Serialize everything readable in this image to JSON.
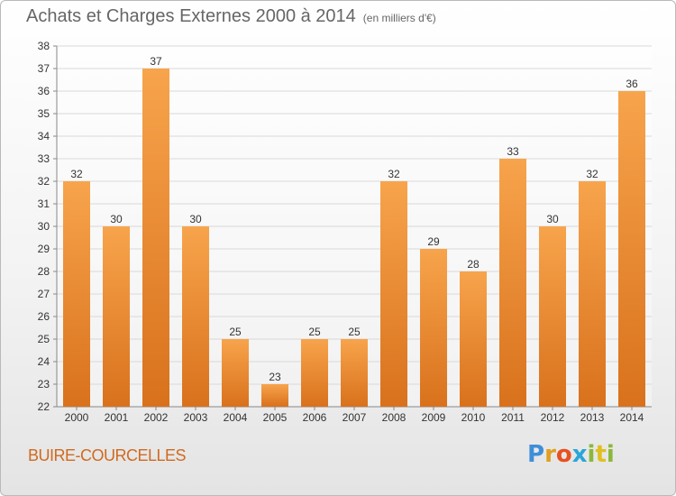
{
  "header": {
    "title": "Achats et Charges Externes 2000 à 2014",
    "unit": "(en milliers d'€)"
  },
  "footer": {
    "commune": "BUIRE-COURCELLES",
    "logo": "Proxiti"
  },
  "colors": {
    "bar_light": "#f7a44c",
    "bar_dark": "#d9711c",
    "grid": "#d9d9d9",
    "axis_text": "#333333",
    "accent": "#d06a20"
  },
  "chart_data": {
    "type": "bar",
    "title": "Achats et Charges Externes 2000 à 2014",
    "subtitle": "(en milliers d'€)",
    "categories": [
      "2000",
      "2001",
      "2002",
      "2003",
      "2004",
      "2005",
      "2006",
      "2007",
      "2008",
      "2009",
      "2010",
      "2011",
      "2012",
      "2013",
      "2014"
    ],
    "values": [
      32,
      30,
      37,
      30,
      25,
      23,
      25,
      25,
      32,
      29,
      28,
      33,
      30,
      32,
      36
    ],
    "ylim": [
      22,
      38
    ],
    "yticks": [
      22,
      23,
      24,
      25,
      26,
      27,
      28,
      29,
      30,
      31,
      32,
      33,
      34,
      35,
      36,
      37,
      38
    ],
    "grid": true,
    "xlabel": "",
    "ylabel": ""
  }
}
